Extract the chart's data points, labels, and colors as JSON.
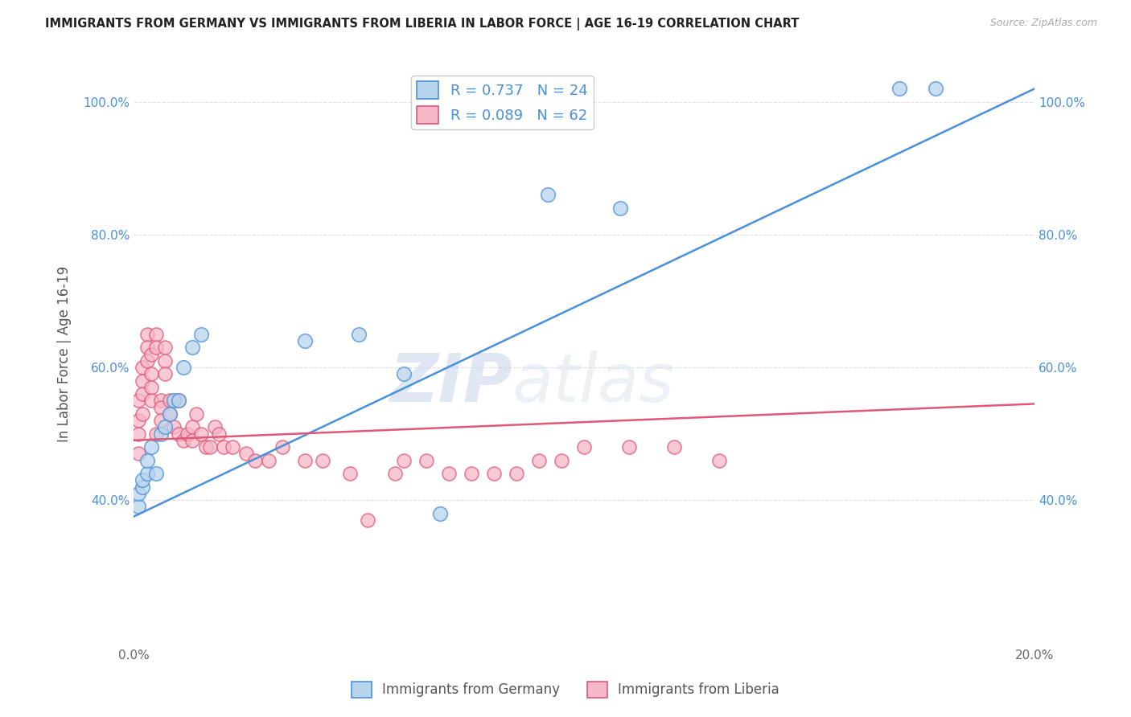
{
  "title": "IMMIGRANTS FROM GERMANY VS IMMIGRANTS FROM LIBERIA IN LABOR FORCE | AGE 16-19 CORRELATION CHART",
  "source": "Source: ZipAtlas.com",
  "ylabel": "In Labor Force | Age 16-19",
  "xlim": [
    0.0,
    0.2
  ],
  "ylim": [
    0.18,
    1.06
  ],
  "yticks": [
    0.4,
    0.6,
    0.8,
    1.0
  ],
  "ytick_labels": [
    "40.0%",
    "60.0%",
    "80.0%",
    "100.0%"
  ],
  "xticks": [
    0.0,
    0.05,
    0.1,
    0.15,
    0.2
  ],
  "xtick_labels": [
    "0.0%",
    "",
    "",
    "",
    "20.0%"
  ],
  "germany_R": 0.737,
  "germany_N": 24,
  "liberia_R": 0.089,
  "liberia_N": 62,
  "germany_color": "#b8d4ed",
  "liberia_color": "#f7b8c8",
  "germany_line_color": "#4a90d9",
  "liberia_line_color": "#e05878",
  "background_color": "#ffffff",
  "grid_color": "#dde0e8",
  "watermark": "ZIPatlas",
  "germany_x": [
    0.001,
    0.001,
    0.002,
    0.002,
    0.003,
    0.003,
    0.004,
    0.005,
    0.006,
    0.007,
    0.008,
    0.009,
    0.01,
    0.011,
    0.013,
    0.015,
    0.038,
    0.05,
    0.06,
    0.068,
    0.092,
    0.108,
    0.17,
    0.178
  ],
  "germany_y": [
    0.39,
    0.41,
    0.42,
    0.43,
    0.44,
    0.46,
    0.48,
    0.44,
    0.5,
    0.51,
    0.53,
    0.55,
    0.55,
    0.6,
    0.63,
    0.65,
    0.64,
    0.65,
    0.59,
    0.38,
    0.86,
    0.84,
    1.02,
    1.02
  ],
  "liberia_x": [
    0.001,
    0.001,
    0.001,
    0.001,
    0.002,
    0.002,
    0.002,
    0.002,
    0.003,
    0.003,
    0.003,
    0.004,
    0.004,
    0.004,
    0.004,
    0.005,
    0.005,
    0.005,
    0.006,
    0.006,
    0.006,
    0.007,
    0.007,
    0.007,
    0.008,
    0.008,
    0.009,
    0.01,
    0.01,
    0.011,
    0.012,
    0.013,
    0.013,
    0.014,
    0.015,
    0.016,
    0.017,
    0.018,
    0.019,
    0.02,
    0.022,
    0.025,
    0.027,
    0.03,
    0.033,
    0.038,
    0.042,
    0.048,
    0.052,
    0.058,
    0.06,
    0.065,
    0.07,
    0.075,
    0.08,
    0.085,
    0.09,
    0.095,
    0.1,
    0.11,
    0.12,
    0.13
  ],
  "liberia_y": [
    0.47,
    0.5,
    0.52,
    0.55,
    0.6,
    0.58,
    0.56,
    0.53,
    0.65,
    0.63,
    0.61,
    0.62,
    0.59,
    0.57,
    0.55,
    0.65,
    0.63,
    0.5,
    0.55,
    0.54,
    0.52,
    0.63,
    0.61,
    0.59,
    0.55,
    0.53,
    0.51,
    0.55,
    0.5,
    0.49,
    0.5,
    0.51,
    0.49,
    0.53,
    0.5,
    0.48,
    0.48,
    0.51,
    0.5,
    0.48,
    0.48,
    0.47,
    0.46,
    0.46,
    0.48,
    0.46,
    0.46,
    0.44,
    0.37,
    0.44,
    0.46,
    0.46,
    0.44,
    0.44,
    0.44,
    0.44,
    0.46,
    0.46,
    0.48,
    0.48,
    0.48,
    0.46
  ],
  "germany_line_x": [
    0.0,
    0.2
  ],
  "germany_line_y": [
    0.375,
    1.02
  ],
  "liberia_line_x": [
    0.0,
    0.2
  ],
  "liberia_line_y": [
    0.49,
    0.545
  ]
}
